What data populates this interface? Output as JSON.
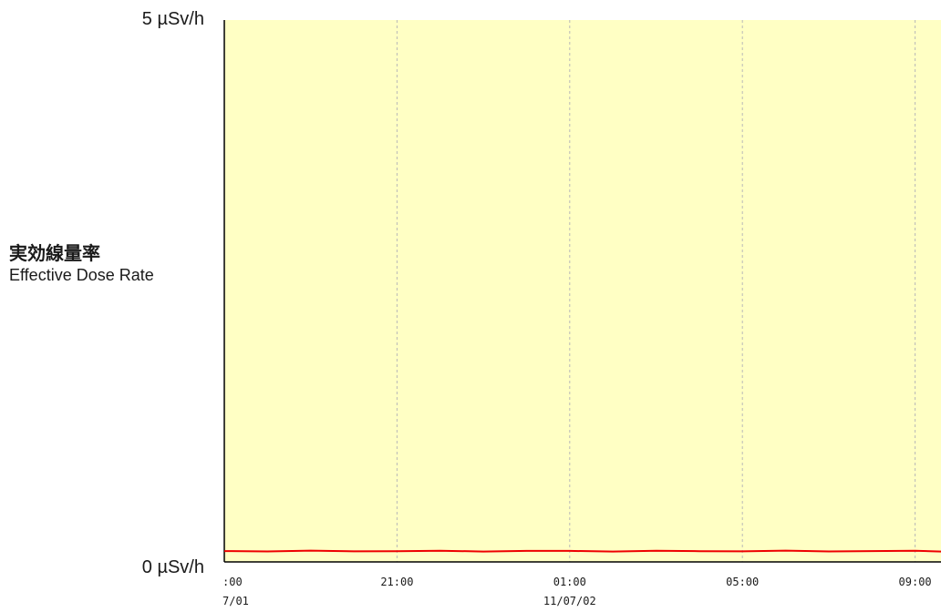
{
  "chart_data": {
    "type": "line",
    "title": "",
    "ylabel_ja": "実効線量率",
    "ylabel_en": "Effective Dose Rate",
    "y_tick_labels": [
      "0 µSv/h",
      "5 µSv/h"
    ],
    "ylim": [
      0,
      5
    ],
    "y_unit": "µSv/h",
    "x_tick_labels": [
      ":00",
      "21:00",
      "01:00",
      "05:00",
      "09:00"
    ],
    "x_date_labels": [
      {
        "at": ":00",
        "text": "7/01"
      },
      {
        "at": "01:00",
        "text": "11/07/02"
      }
    ],
    "x_hours": [
      17,
      21,
      25,
      29,
      33
    ],
    "xlim_hours": [
      17,
      33.6
    ],
    "grid": {
      "vertical": true,
      "horizontal": false,
      "style": "dashed"
    },
    "background_color": "#ffffc4",
    "series": [
      {
        "color": "#ee0000",
        "baseline_value": 0.1,
        "values_note": "",
        "x": [
          17,
          18,
          19,
          20,
          21,
          22,
          23,
          24,
          25,
          26,
          27,
          28,
          29,
          30,
          31,
          32,
          33,
          33.6
        ],
        "values": [
          0.1,
          0.1,
          0.1,
          0.1,
          0.1,
          0.1,
          0.1,
          0.1,
          0.1,
          0.1,
          0.1,
          0.1,
          0.1,
          0.1,
          0.1,
          0.1,
          0.1,
          0.1
        ]
      }
    ]
  }
}
